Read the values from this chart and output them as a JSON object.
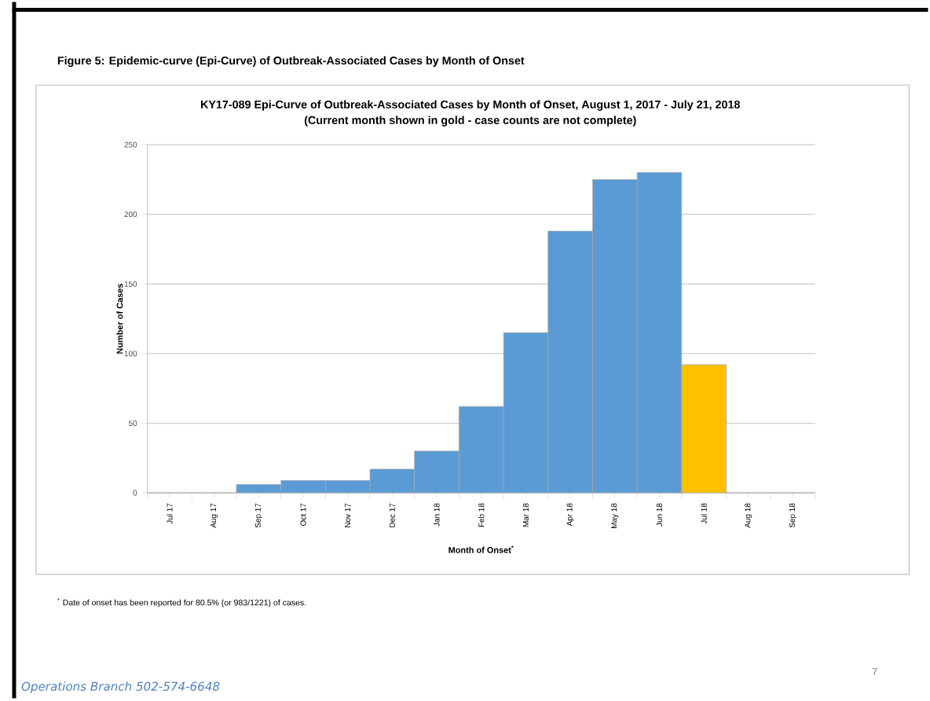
{
  "chart_data": {
    "type": "bar",
    "title": "Figure 5: Epidemic-curve (Epi-Curve) of Outbreak-Associated Cases by Month of Onset",
    "subtitle": "KY17-089 Epi-Curve of Outbreak-Associated Cases by Month of Onset, August 1, 2017 - July 21, 2018",
    "annotations": [
      "(Current month shown in gold - case counts are not complete)",
      "$^{*}$ Date of onset has been reported for 80.5% (or 983/1221) of cases.",
      "Operations Branch 502-574-6648",
      "7"
    ],
    "xlabel": "Month of Onset$^{*}$",
    "ylabel": "Number of Cases",
    "categories": [
      "Jul 17",
      "Aug 17",
      "Sep 17",
      "Oct 17",
      "Nov 17",
      "Dec 17",
      "Jan 18",
      "Feb 18",
      "Mar 18",
      "Apr 18",
      "May 18",
      "Jun 18",
      "Jul 18",
      "Aug 18",
      "Sep 18"
    ],
    "values": [
      0,
      0,
      6,
      9,
      9,
      17,
      30,
      62,
      115,
      188,
      225,
      230,
      92,
      0,
      0
    ],
    "colors": [
      "#5b9bd5",
      "#5b9bd5",
      "#5b9bd5",
      "#5b9bd5",
      "#5b9bd5",
      "#5b9bd5",
      "#5b9bd5",
      "#5b9bd5",
      "#5b9bd5",
      "#5b9bd5",
      "#5b9bd5",
      "#5b9bd5",
      "#ffc000",
      "#5b9bd5",
      "#5b9bd5"
    ],
    "ylim": [
      0,
      250
    ],
    "yticks": [
      0,
      50,
      100,
      150,
      200,
      250
    ],
    "grid": "y"
  }
}
